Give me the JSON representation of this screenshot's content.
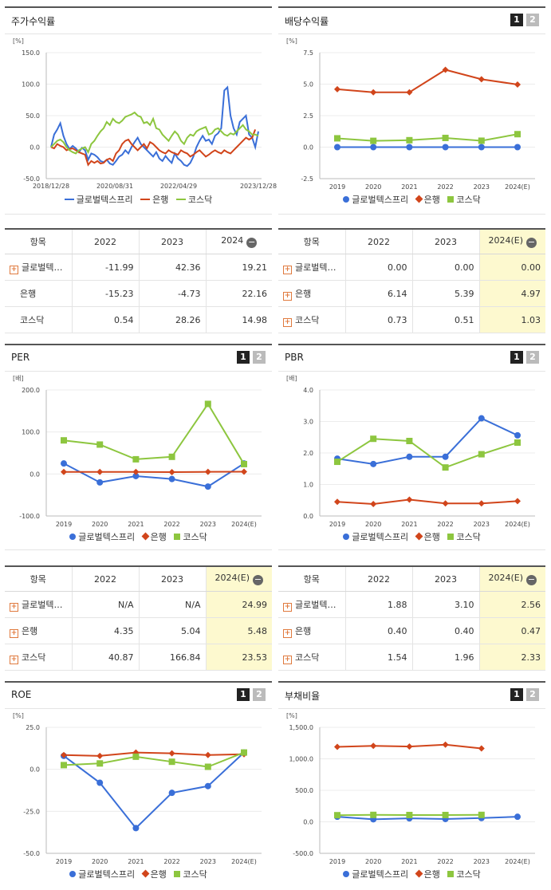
{
  "colors": {
    "company": "#3a6fd8",
    "bank": "#d1451b",
    "kosdaq": "#8dc63f"
  },
  "panels": {
    "stock_return": {
      "title": "주가수익률",
      "unit": "[%]",
      "table": {
        "header": [
          "항목",
          "2022",
          "2023",
          "2024"
        ],
        "rows": [
          {
            "name": "글로벌텍…",
            "plus": true,
            "values": [
              "-11.99",
              "42.36",
              "19.21"
            ]
          },
          {
            "name": "은행",
            "plus": false,
            "values": [
              "-15.23",
              "-4.73",
              "22.16"
            ]
          },
          {
            "name": "코스닥",
            "plus": false,
            "values": [
              "0.54",
              "28.26",
              "14.98"
            ]
          }
        ]
      }
    },
    "dividend": {
      "title": "배당수익률",
      "unit": "[%]",
      "page1": "1",
      "page2": "2",
      "table": {
        "header": [
          "항목",
          "2022",
          "2023",
          "2024(E)"
        ],
        "rows": [
          {
            "name": "글로벌텍…",
            "plus": true,
            "values": [
              "0.00",
              "0.00",
              "0.00"
            ]
          },
          {
            "name": "은행",
            "plus": true,
            "values": [
              "6.14",
              "5.39",
              "4.97"
            ]
          },
          {
            "name": "코스닥",
            "plus": true,
            "values": [
              "0.73",
              "0.51",
              "1.03"
            ]
          }
        ]
      }
    },
    "per": {
      "title": "PER",
      "unit": "[배]",
      "page1": "1",
      "page2": "2",
      "table": {
        "header": [
          "항목",
          "2022",
          "2023",
          "2024(E)"
        ],
        "rows": [
          {
            "name": "글로벌텍…",
            "plus": true,
            "values": [
              "N/A",
              "N/A",
              "24.99"
            ]
          },
          {
            "name": "은행",
            "plus": true,
            "values": [
              "4.35",
              "5.04",
              "5.48"
            ]
          },
          {
            "name": "코스닥",
            "plus": true,
            "values": [
              "40.87",
              "166.84",
              "23.53"
            ]
          }
        ]
      }
    },
    "pbr": {
      "title": "PBR",
      "unit": "[배]",
      "page1": "1",
      "page2": "2",
      "table": {
        "header": [
          "항목",
          "2022",
          "2023",
          "2024(E)"
        ],
        "rows": [
          {
            "name": "글로벌텍…",
            "plus": true,
            "values": [
              "1.88",
              "3.10",
              "2.56"
            ]
          },
          {
            "name": "은행",
            "plus": true,
            "values": [
              "0.40",
              "0.40",
              "0.47"
            ]
          },
          {
            "name": "코스닥",
            "plus": true,
            "values": [
              "1.54",
              "1.96",
              "2.33"
            ]
          }
        ]
      }
    },
    "roe": {
      "title": "ROE",
      "unit": "[%]",
      "page1": "1",
      "page2": "2"
    },
    "debt": {
      "title": "부채비율",
      "unit": "[%]",
      "page1": "1",
      "page2": "2"
    }
  },
  "legend": {
    "company": "글로벌텍스프리",
    "bank": "은행",
    "kosdaq": "코스닥"
  },
  "chart_data": [
    {
      "id": "stock_return",
      "type": "line",
      "x_ticks": [
        "2018/12/28",
        "2020/08/31",
        "2022/04/29",
        "2023/12/28"
      ],
      "ylim": [
        -50,
        150
      ],
      "y_ticks": [
        "150.0",
        "100.0",
        "50.0",
        "0.0",
        "-50.0"
      ],
      "series": [
        {
          "name": "글로벌텍스프리",
          "values": [
            0,
            20,
            28,
            38,
            18,
            5,
            -3,
            2,
            -2,
            -8,
            -1,
            -5,
            -20,
            -10,
            -12,
            -16,
            -22,
            -24,
            -20,
            -26,
            -28,
            -22,
            -15,
            -12,
            -5,
            -10,
            0,
            8,
            15,
            5,
            0,
            -5,
            -10,
            -15,
            -8,
            -18,
            -22,
            -14,
            -20,
            -25,
            -10,
            -18,
            -22,
            -28,
            -30,
            -25,
            -15,
            0,
            10,
            18,
            10,
            12,
            5,
            18,
            22,
            30,
            90,
            95,
            50,
            30,
            20,
            40,
            45,
            50,
            20,
            15,
            0,
            25
          ]
        },
        {
          "name": "은행",
          "values": [
            0,
            -2,
            5,
            2,
            0,
            -5,
            -3,
            -2,
            -5,
            -8,
            -10,
            -12,
            -28,
            -22,
            -25,
            -22,
            -26,
            -25,
            -20,
            -18,
            -22,
            -10,
            -5,
            5,
            10,
            12,
            5,
            0,
            -5,
            0,
            5,
            -2,
            8,
            5,
            0,
            -5,
            -8,
            -10,
            -5,
            -8,
            -10,
            -12,
            -5,
            -8,
            -10,
            -15,
            -12,
            -8,
            -5,
            -10,
            -15,
            -12,
            -8,
            -5,
            -8,
            -10,
            -5,
            -8,
            -10,
            -5,
            0,
            5,
            10,
            15,
            12,
            15,
            28
          ]
        },
        {
          "name": "코스닥",
          "values": [
            0,
            5,
            10,
            12,
            8,
            0,
            -5,
            -8,
            -10,
            -5,
            -2,
            0,
            -8,
            5,
            10,
            18,
            25,
            30,
            40,
            35,
            45,
            40,
            38,
            42,
            48,
            50,
            52,
            55,
            50,
            48,
            38,
            40,
            35,
            45,
            30,
            28,
            20,
            15,
            10,
            18,
            25,
            20,
            10,
            5,
            15,
            20,
            18,
            25,
            28,
            30,
            32,
            20,
            22,
            28,
            30,
            25,
            20,
            18,
            22,
            20,
            25,
            30,
            35,
            28,
            25,
            20,
            20,
            18
          ]
        }
      ]
    },
    {
      "id": "dividend",
      "type": "line",
      "categories": [
        "2019",
        "2020",
        "2021",
        "2022",
        "2023",
        "2024(E)"
      ],
      "ylim": [
        -2.5,
        7.5
      ],
      "y_ticks": [
        "7.5",
        "5.0",
        "2.5",
        "0.0",
        "-2.5"
      ],
      "series": [
        {
          "name": "글로벌텍스프리",
          "values": [
            0,
            0,
            0,
            0,
            0,
            0
          ]
        },
        {
          "name": "은행",
          "values": [
            4.6,
            4.35,
            4.35,
            6.14,
            5.39,
            4.97
          ]
        },
        {
          "name": "코스닥",
          "values": [
            0.7,
            0.5,
            0.55,
            0.73,
            0.51,
            1.03
          ]
        }
      ]
    },
    {
      "id": "per",
      "type": "line",
      "categories": [
        "2019",
        "2020",
        "2021",
        "2022",
        "2023",
        "2024(E)"
      ],
      "ylim": [
        -100,
        200
      ],
      "y_ticks": [
        "200.0",
        "100.0",
        "0.0",
        "-100.0"
      ],
      "series": [
        {
          "name": "글로벌텍스프리",
          "values": [
            25,
            -20,
            -5,
            -12,
            -30,
            24.99
          ]
        },
        {
          "name": "은행",
          "values": [
            5,
            5,
            5,
            4.35,
            5.04,
            5.48
          ]
        },
        {
          "name": "코스닥",
          "values": [
            80,
            70,
            35,
            40.87,
            166.84,
            23.53
          ]
        }
      ]
    },
    {
      "id": "pbr",
      "type": "line",
      "categories": [
        "2019",
        "2020",
        "2021",
        "2022",
        "2023",
        "2024(E)"
      ],
      "ylim": [
        0,
        4
      ],
      "y_ticks": [
        "4.0",
        "3.0",
        "2.0",
        "1.0",
        "0.0"
      ],
      "series": [
        {
          "name": "글로벌텍스프리",
          "values": [
            1.82,
            1.65,
            1.88,
            1.88,
            3.1,
            2.56
          ]
        },
        {
          "name": "은행",
          "values": [
            0.45,
            0.38,
            0.52,
            0.4,
            0.4,
            0.47
          ]
        },
        {
          "name": "코스닥",
          "values": [
            1.72,
            2.45,
            2.38,
            1.54,
            1.96,
            2.33
          ]
        }
      ]
    },
    {
      "id": "roe",
      "type": "line",
      "categories": [
        "2019",
        "2020",
        "2021",
        "2022",
        "2023",
        "2024(E)"
      ],
      "ylim": [
        -50,
        25
      ],
      "y_ticks": [
        "25.0",
        "0.0",
        "-25.0",
        "-50.0"
      ],
      "series": [
        {
          "name": "글로벌텍스프리",
          "values": [
            8,
            -8,
            -35,
            -14,
            -10,
            10
          ]
        },
        {
          "name": "은행",
          "values": [
            8.5,
            8,
            10,
            9.5,
            8.5,
            9
          ]
        },
        {
          "name": "코스닥",
          "values": [
            2.5,
            3.5,
            7.5,
            4.5,
            1.5,
            10
          ]
        }
      ]
    },
    {
      "id": "debt",
      "type": "line",
      "categories": [
        "2019",
        "2020",
        "2021",
        "2022",
        "2023",
        "2024(E)"
      ],
      "ylim": [
        -500,
        1500
      ],
      "y_ticks": [
        "1,500.0",
        "1,000.0",
        "500.0",
        "0.0",
        "-500.0"
      ],
      "series": [
        {
          "name": "글로벌텍스프리",
          "values": [
            80,
            40,
            55,
            45,
            60,
            80
          ]
        },
        {
          "name": "은행",
          "values": [
            1190,
            1205,
            1195,
            1225,
            1165,
            null
          ]
        },
        {
          "name": "코스닥",
          "values": [
            105,
            110,
            108,
            108,
            110,
            null
          ]
        }
      ]
    }
  ]
}
